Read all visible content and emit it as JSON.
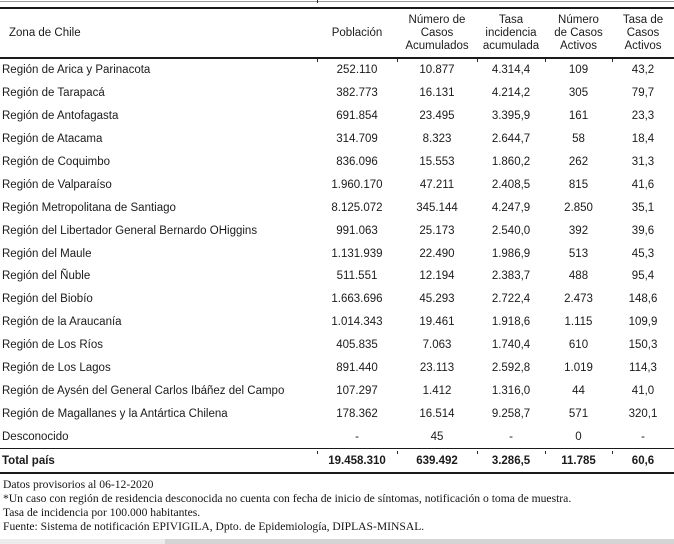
{
  "table": {
    "columns": [
      {
        "key": "zona",
        "label": "Zona de Chile"
      },
      {
        "key": "poblacion",
        "label": "Población"
      },
      {
        "key": "casos_acumulados",
        "label": "Número de\nCasos\nAcumulados"
      },
      {
        "key": "tasa_incidencia",
        "label": "Tasa\nincidencia\nacumulada"
      },
      {
        "key": "casos_activos",
        "label": "Número\nde Casos\nActivos"
      },
      {
        "key": "tasa_activos",
        "label": "Tasa de\nCasos\nActivos"
      }
    ],
    "rows": [
      [
        "Región de Arica y Parinacota",
        "252.110",
        "10.877",
        "4.314,4",
        "109",
        "43,2"
      ],
      [
        "Región de Tarapacá",
        "382.773",
        "16.131",
        "4.214,2",
        "305",
        "79,7"
      ],
      [
        "Región de Antofagasta",
        "691.854",
        "23.495",
        "3.395,9",
        "161",
        "23,3"
      ],
      [
        "Región de Atacama",
        "314.709",
        "8.323",
        "2.644,7",
        "58",
        "18,4"
      ],
      [
        "Región de Coquimbo",
        "836.096",
        "15.553",
        "1.860,2",
        "262",
        "31,3"
      ],
      [
        "Región de Valparaíso",
        "1.960.170",
        "47.211",
        "2.408,5",
        "815",
        "41,6"
      ],
      [
        "Región Metropolitana de Santiago",
        "8.125.072",
        "345.144",
        "4.247,9",
        "2.850",
        "35,1"
      ],
      [
        "Región del Libertador General Bernardo OHiggins",
        "991.063",
        "25.173",
        "2.540,0",
        "392",
        "39,6"
      ],
      [
        "Región del Maule",
        "1.131.939",
        "22.490",
        "1.986,9",
        "513",
        "45,3"
      ],
      [
        "Región del Ñuble",
        "511.551",
        "12.194",
        "2.383,7",
        "488",
        "95,4"
      ],
      [
        "Región del Biobío",
        "1.663.696",
        "45.293",
        "2.722,4",
        "2.473",
        "148,6"
      ],
      [
        "Región de la Araucanía",
        "1.014.343",
        "19.461",
        "1.918,6",
        "1.115",
        "109,9"
      ],
      [
        "Región de Los Ríos",
        "405.835",
        "7.063",
        "1.740,4",
        "610",
        "150,3"
      ],
      [
        "Región de Los Lagos",
        "891.440",
        "23.113",
        "2.592,8",
        "1.019",
        "114,3"
      ],
      [
        "Región de Aysén del General Carlos Ibáñez del Campo",
        "107.297",
        "1.412",
        "1.316,0",
        "44",
        "41,0"
      ],
      [
        "Región de Magallanes y la Antártica Chilena",
        "178.362",
        "16.514",
        "9.258,7",
        "571",
        "320,1"
      ],
      [
        "Desconocido",
        "-",
        "45",
        "-",
        "0",
        "-"
      ]
    ],
    "total_row": [
      "Total país",
      "19.458.310",
      "639.492",
      "3.286,5",
      "11.785",
      "60,6"
    ]
  },
  "footnotes": [
    "Datos provisorios al 06-12-2020",
    "*Un caso con región de residencia desconocida no cuenta con fecha de inicio de síntomas, notificación o toma de muestra.",
    "Tasa de incidencia por 100.000 habitantes.",
    "Fuente: Sistema de notificación EPIVIGILA, Dpto. de Epidemiología, DIPLAS-MINSAL."
  ],
  "colors": {
    "text": "#1b1b1b",
    "rule": "#1a1a1a",
    "bottom_strip_light": "#ececec",
    "bottom_strip_dark": "#d4d4d4"
  }
}
